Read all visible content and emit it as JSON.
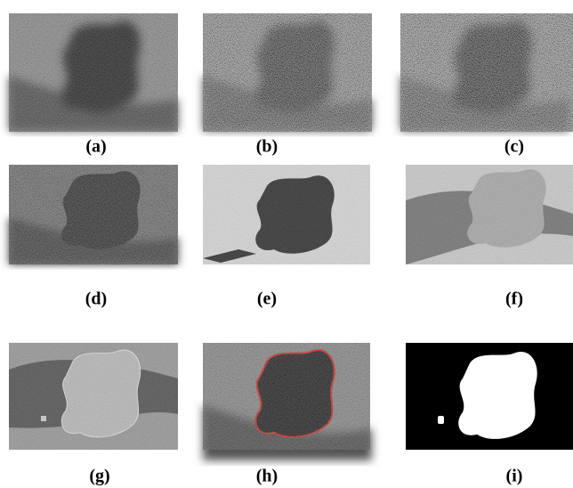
{
  "panels": [
    {
      "label": "(a)"
    },
    {
      "label": "(b)"
    },
    {
      "label": "(c)"
    },
    {
      "label": "(d)"
    },
    {
      "label": "(e)"
    },
    {
      "label": "(f)"
    },
    {
      "label": "(g)"
    },
    {
      "label": "(h)"
    },
    {
      "label": "(i)"
    }
  ]
}
